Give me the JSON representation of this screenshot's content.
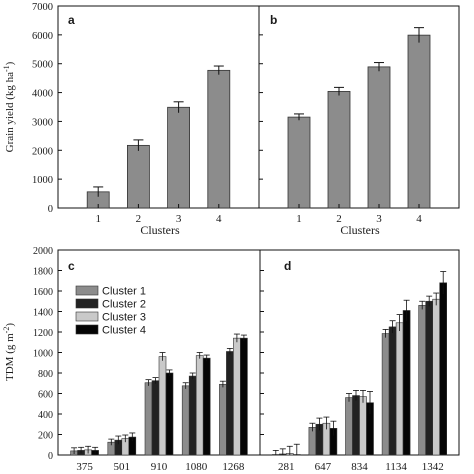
{
  "chart_data": [
    {
      "panel": "a",
      "type": "bar",
      "categories": [
        "1",
        "2",
        "3",
        "4"
      ],
      "values": [
        560,
        2170,
        3490,
        4770
      ],
      "errors": [
        170,
        190,
        190,
        150
      ],
      "xlabel": "Clusters",
      "ylabel": "Grain yield (kg ha",
      "ylabel_sup": "-1",
      "ylabel_close": ")",
      "ylim": [
        0,
        7000
      ],
      "yticks": [
        "0",
        "1000",
        "2000",
        "3000",
        "4000",
        "5000",
        "6000",
        "7000"
      ],
      "bar_color": "#8c8c8c"
    },
    {
      "panel": "b",
      "type": "bar",
      "categories": [
        "1",
        "2",
        "3",
        "4"
      ],
      "values": [
        3150,
        4040,
        4890,
        5990
      ],
      "errors": [
        110,
        140,
        150,
        260
      ],
      "xlabel": "Clusters",
      "ylim": [
        0,
        7000
      ],
      "bar_color": "#8c8c8c"
    },
    {
      "panel": "c",
      "type": "bar",
      "categories": [
        "375",
        "501",
        "910",
        "1080",
        "1268"
      ],
      "series": [
        {
          "name": "Cluster 1",
          "values": [
            40,
            125,
            705,
            675,
            690
          ],
          "errors": [
            30,
            30,
            30,
            30,
            30
          ]
        },
        {
          "name": "Cluster 2",
          "values": [
            45,
            145,
            725,
            770,
            1010
          ],
          "errors": [
            30,
            40,
            30,
            30,
            30
          ]
        },
        {
          "name": "Cluster 3",
          "values": [
            50,
            160,
            960,
            970,
            1140
          ],
          "errors": [
            35,
            35,
            40,
            30,
            40
          ]
        },
        {
          "name": "Cluster 4",
          "values": [
            45,
            175,
            800,
            945,
            1140
          ],
          "errors": [
            30,
            40,
            30,
            30,
            30
          ]
        }
      ],
      "ylabel": "TDM (g m",
      "ylabel_sup": "-2",
      "ylabel_close": ")",
      "ylim": [
        0,
        2000
      ],
      "yticks": [
        "0",
        "200",
        "400",
        "600",
        "800",
        "1000",
        "1200",
        "1400",
        "1600",
        "1800",
        "2000"
      ],
      "legend_position": "top-left"
    },
    {
      "panel": "d",
      "type": "bar",
      "categories": [
        "281",
        "647",
        "834",
        "1134",
        "1342"
      ],
      "series": [
        {
          "name": "Cluster 1",
          "values": [
            5,
            270,
            560,
            1185,
            1460
          ],
          "errors": [
            40,
            40,
            40,
            40,
            40
          ]
        },
        {
          "name": "Cluster 2",
          "values": [
            10,
            300,
            580,
            1250,
            1500
          ],
          "errors": [
            50,
            60,
            50,
            60,
            50
          ]
        },
        {
          "name": "Cluster 3",
          "values": [
            15,
            310,
            570,
            1290,
            1520
          ],
          "errors": [
            70,
            60,
            60,
            80,
            60
          ]
        },
        {
          "name": "Cluster 4",
          "values": [
            5,
            260,
            510,
            1410,
            1680
          ],
          "errors": [
            100,
            70,
            110,
            100,
            110
          ]
        }
      ],
      "ylim": [
        0,
        2000
      ]
    }
  ],
  "series_colors": [
    "#8c8c8c",
    "#222222",
    "#c9c9c9",
    "#050505"
  ]
}
